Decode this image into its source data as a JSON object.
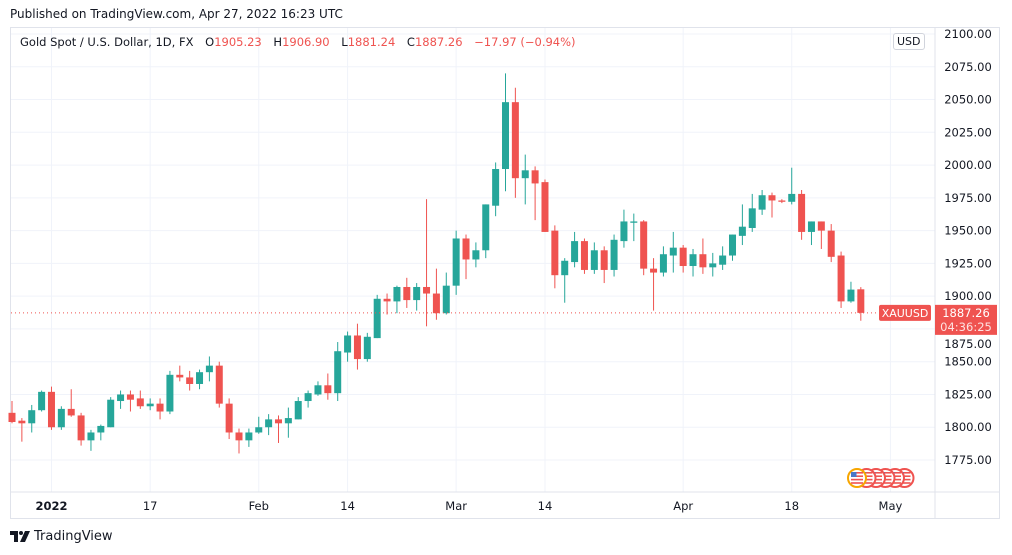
{
  "header": {
    "published": "Published on TradingView.com, Apr 27, 2022 16:23 UTC"
  },
  "legend": {
    "symbol": "Gold Spot / U.S. Dollar, 1D, FX",
    "o_label": "O",
    "o": "1905.23",
    "h_label": "H",
    "h": "1906.90",
    "l_label": "L",
    "l": "1881.24",
    "c_label": "C",
    "c": "1887.26",
    "change": "−17.97 (−0.94%)"
  },
  "currency_badge": "USD",
  "price_label": {
    "ticker": "XAUUSD",
    "price": "1887.26",
    "countdown": "04:36:25"
  },
  "footer": {
    "brand": "TradingView"
  },
  "colors": {
    "up": "#26a69a",
    "down": "#ef5350",
    "grid": "#f0f3fa",
    "border": "#e0e3eb"
  },
  "chart_data": {
    "type": "candlestick",
    "title": "Gold Spot / U.S. Dollar, 1D, FX",
    "ylim": [
      1750,
      2110
    ],
    "y_ticks": [
      "2100.00",
      "2075.00",
      "2050.00",
      "2025.00",
      "2000.00",
      "1975.00",
      "1950.00",
      "1925.00",
      "1900.00",
      "1875.00",
      "1850.00",
      "1825.00",
      "1800.00",
      "1775.00"
    ],
    "y_tick_values": [
      2100,
      2075,
      2050,
      2025,
      2000,
      1975,
      1950,
      1925,
      1900,
      1875,
      1850,
      1825,
      1800,
      1775
    ],
    "x_ticks": [
      {
        "label": "2022",
        "index": 4,
        "bold": true
      },
      {
        "label": "17",
        "index": 14
      },
      {
        "label": "Feb",
        "index": 25
      },
      {
        "label": "14",
        "index": 34
      },
      {
        "label": "Mar",
        "index": 45
      },
      {
        "label": "14",
        "index": 54
      },
      {
        "label": "Apr",
        "index": 68
      },
      {
        "label": "18",
        "index": 79
      },
      {
        "label": "May",
        "index": 89
      }
    ],
    "last_price": 1887.26,
    "ohlc": [
      [
        1811,
        1820,
        1803,
        1804
      ],
      [
        1805,
        1807,
        1789,
        1803
      ],
      [
        1803,
        1817,
        1796,
        1813
      ],
      [
        1813,
        1828,
        1812,
        1827
      ],
      [
        1827,
        1831,
        1798,
        1800
      ],
      [
        1800,
        1816,
        1798,
        1814
      ],
      [
        1814,
        1829,
        1808,
        1809
      ],
      [
        1809,
        1811,
        1786,
        1790
      ],
      [
        1790,
        1798,
        1782,
        1796
      ],
      [
        1796,
        1802,
        1790,
        1801
      ],
      [
        1800,
        1823,
        1800,
        1821
      ],
      [
        1820,
        1828,
        1814,
        1825
      ],
      [
        1825,
        1828,
        1812,
        1821
      ],
      [
        1822,
        1828,
        1814,
        1816
      ],
      [
        1816,
        1822,
        1813,
        1818
      ],
      [
        1818,
        1822,
        1806,
        1812
      ],
      [
        1812,
        1843,
        1810,
        1840
      ],
      [
        1840,
        1847,
        1835,
        1838
      ],
      [
        1838,
        1843,
        1828,
        1833
      ],
      [
        1833,
        1844,
        1829,
        1842
      ],
      [
        1842,
        1854,
        1835,
        1847
      ],
      [
        1847,
        1850,
        1815,
        1818
      ],
      [
        1818,
        1822,
        1791,
        1796
      ],
      [
        1796,
        1799,
        1780,
        1790
      ],
      [
        1790,
        1799,
        1785,
        1796
      ],
      [
        1796,
        1808,
        1795,
        1800
      ],
      [
        1800,
        1810,
        1794,
        1806
      ],
      [
        1806,
        1809,
        1788,
        1803
      ],
      [
        1803,
        1815,
        1792,
        1807
      ],
      [
        1806,
        1823,
        1806,
        1820
      ],
      [
        1820,
        1828,
        1815,
        1826
      ],
      [
        1825,
        1835,
        1824,
        1832
      ],
      [
        1832,
        1841,
        1821,
        1826
      ],
      [
        1826,
        1865,
        1820,
        1858
      ],
      [
        1857,
        1873,
        1850,
        1870
      ],
      [
        1870,
        1879,
        1844,
        1852
      ],
      [
        1852,
        1872,
        1850,
        1869
      ],
      [
        1868,
        1901,
        1868,
        1898
      ],
      [
        1898,
        1902,
        1886,
        1896
      ],
      [
        1896,
        1908,
        1887,
        1907
      ],
      [
        1907,
        1914,
        1891,
        1897
      ],
      [
        1897,
        1910,
        1889,
        1907
      ],
      [
        1907,
        1974,
        1877,
        1902
      ],
      [
        1902,
        1921,
        1882,
        1887
      ],
      [
        1887,
        1918,
        1886,
        1908
      ],
      [
        1908,
        1950,
        1901,
        1944
      ],
      [
        1944,
        1947,
        1913,
        1928
      ],
      [
        1928,
        1941,
        1922,
        1935
      ],
      [
        1935,
        1970,
        1929,
        1970
      ],
      [
        1969,
        2002,
        1961,
        1997
      ],
      [
        1997,
        2070,
        1980,
        2048
      ],
      [
        2048,
        2059,
        1975,
        1990
      ],
      [
        1990,
        2008,
        1970,
        1996
      ],
      [
        1996,
        1999,
        1958,
        1986
      ],
      [
        1987,
        1989,
        1949,
        1949
      ],
      [
        1950,
        1954,
        1906,
        1916
      ],
      [
        1916,
        1929,
        1895,
        1927
      ],
      [
        1926,
        1949,
        1922,
        1942
      ],
      [
        1942,
        1944,
        1917,
        1920
      ],
      [
        1920,
        1941,
        1917,
        1935
      ],
      [
        1935,
        1938,
        1910,
        1920
      ],
      [
        1920,
        1947,
        1915,
        1943
      ],
      [
        1942,
        1966,
        1937,
        1957
      ],
      [
        1956,
        1963,
        1942,
        1957
      ],
      [
        1957,
        1958,
        1916,
        1921
      ],
      [
        1921,
        1929,
        1889,
        1918
      ],
      [
        1918,
        1938,
        1915,
        1932
      ],
      [
        1931,
        1949,
        1918,
        1937
      ],
      [
        1937,
        1939,
        1918,
        1923
      ],
      [
        1923,
        1936,
        1915,
        1932
      ],
      [
        1932,
        1944,
        1917,
        1922
      ],
      [
        1922,
        1933,
        1915,
        1925
      ],
      [
        1924,
        1938,
        1920,
        1931
      ],
      [
        1931,
        1947,
        1927,
        1947
      ],
      [
        1946,
        1970,
        1939,
        1953
      ],
      [
        1952,
        1978,
        1949,
        1967
      ],
      [
        1966,
        1981,
        1962,
        1977
      ],
      [
        1977,
        1979,
        1960,
        1973
      ],
      [
        1973,
        1974,
        1971,
        1972
      ],
      [
        1972,
        1998,
        1970,
        1978
      ],
      [
        1978,
        1981,
        1943,
        1949
      ],
      [
        1949,
        1957,
        1939,
        1957
      ],
      [
        1957,
        1957,
        1936,
        1950
      ],
      [
        1950,
        1955,
        1926,
        1930
      ],
      [
        1931,
        1934,
        1891,
        1896
      ],
      [
        1896,
        1911,
        1895,
        1905
      ],
      [
        1905.23,
        1906.9,
        1881.24,
        1887.26
      ]
    ]
  }
}
